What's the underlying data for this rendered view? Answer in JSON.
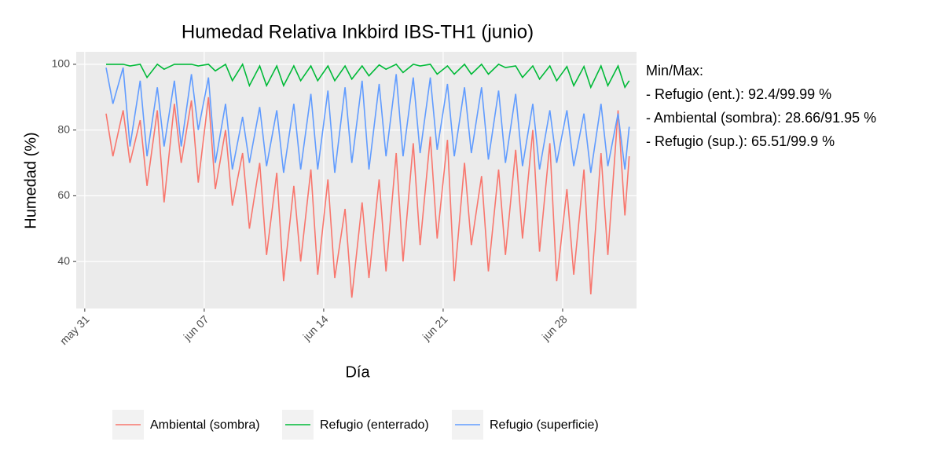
{
  "chart_data": {
    "type": "line",
    "title": "Humedad Relativa Inkbird IBS-TH1 (junio)",
    "x_label": "Día",
    "y_label": "Humedad (%)",
    "x": [
      1.25,
      1.65,
      2.25,
      2.65,
      3.25,
      3.65,
      4.25,
      4.65,
      5.25,
      5.65,
      6.25,
      6.65,
      7.25,
      7.65,
      8.25,
      8.65,
      9.25,
      9.65,
      10.25,
      10.65,
      11.25,
      11.65,
      12.25,
      12.65,
      13.25,
      13.65,
      14.25,
      14.65,
      15.25,
      15.65,
      16.25,
      16.65,
      17.25,
      17.65,
      18.25,
      18.65,
      19.25,
      19.65,
      20.25,
      20.65,
      21.25,
      21.65,
      22.25,
      22.65,
      23.25,
      23.65,
      24.25,
      24.65,
      25.25,
      25.65,
      26.25,
      26.65,
      27.25,
      27.65,
      28.25,
      28.65,
      29.25,
      29.65,
      30.25,
      30.65,
      31.25,
      31.65,
      31.9
    ],
    "series": [
      {
        "name": "Ambiental (sombra)",
        "color": "#F8766D",
        "values": [
          85,
          72,
          86,
          70,
          83,
          63,
          86,
          58,
          88,
          70,
          89,
          64,
          90,
          62,
          80,
          57,
          73,
          50,
          70,
          42,
          67,
          34,
          63,
          40,
          68,
          36,
          65,
          35,
          56,
          29,
          58,
          35,
          65,
          37,
          73,
          40,
          76,
          45,
          78,
          47,
          77,
          34,
          70,
          45,
          66,
          37,
          68,
          42,
          74,
          47,
          80,
          43,
          76,
          34,
          62,
          36,
          68,
          30,
          73,
          42,
          86,
          54,
          72
        ]
      },
      {
        "name": "Refugio (enterrado)",
        "color": "#00BA38",
        "values": [
          100,
          100,
          100,
          99.5,
          100,
          96,
          100,
          98.5,
          100,
          100,
          100,
          99.5,
          100,
          98,
          100,
          95,
          100,
          93.5,
          99.5,
          93.5,
          99.5,
          93.5,
          99.5,
          95,
          99.5,
          95,
          99.5,
          95,
          99.5,
          95.5,
          99.5,
          96.5,
          99.8,
          98.5,
          100,
          97.5,
          100,
          99.5,
          100,
          97,
          99.5,
          97,
          100,
          97,
          100,
          97,
          100,
          99,
          99.5,
          96,
          99.5,
          95.5,
          99.5,
          95,
          99.3,
          93.5,
          99.3,
          93,
          99.5,
          93.5,
          99.5,
          93,
          95
        ]
      },
      {
        "name": "Refugio (superficie)",
        "color": "#619CFF",
        "values": [
          99,
          88,
          99,
          75,
          95,
          72,
          93,
          75,
          95,
          75,
          97,
          80,
          96,
          70,
          88,
          68,
          84,
          70,
          87,
          69,
          86,
          67,
          88,
          68,
          91,
          68,
          92,
          67,
          93,
          70,
          95,
          68,
          94,
          72,
          97,
          72,
          96,
          73,
          96,
          74,
          94,
          72,
          93,
          73,
          93,
          71,
          92,
          70,
          91,
          69,
          88,
          68,
          86,
          70,
          86,
          69,
          85,
          67,
          88,
          69,
          85,
          68,
          81
        ]
      }
    ],
    "xlim": [
      -0.5,
      32.33
    ],
    "xticks": [
      {
        "value": 0,
        "label": "may 31"
      },
      {
        "value": 7,
        "label": "jun 07"
      },
      {
        "value": 14,
        "label": "jun 14"
      },
      {
        "value": 21,
        "label": "jun 21"
      },
      {
        "value": 28,
        "label": "jun 28"
      }
    ],
    "ylim": [
      25.7,
      103.8
    ],
    "yticks": [
      40,
      60,
      80,
      100
    ],
    "grid": true,
    "legend": "bottom",
    "annotations": [
      "Min/Max:",
      "- Refugio (ent.): 92.4/99.99 %",
      "- Ambiental (sombra): 28.66/91.95 %",
      "- Refugio (sup.): 65.51/99.9 %"
    ]
  }
}
